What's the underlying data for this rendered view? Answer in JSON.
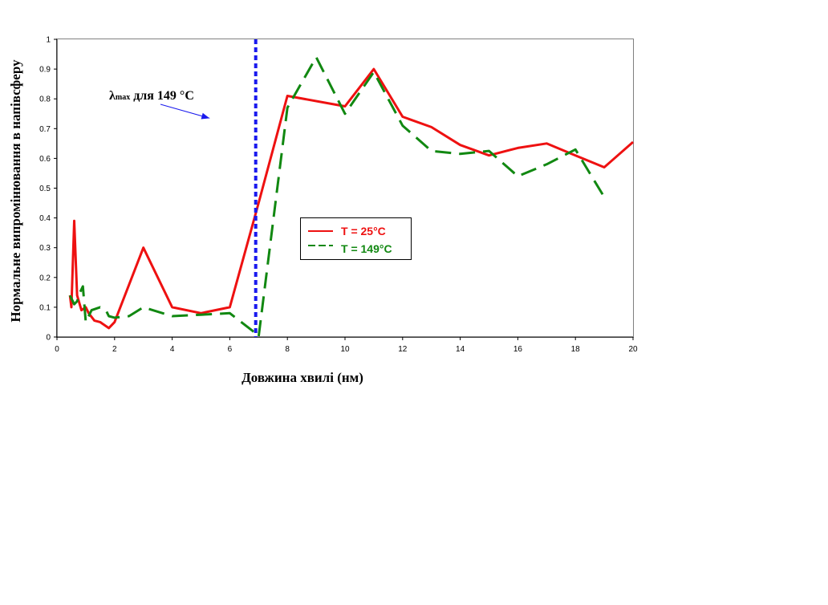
{
  "chart_data": {
    "type": "line",
    "xlabel": "Довжина хвилі (нм)",
    "ylabel": "Нормальне випромінювання в напівсферу",
    "xlim": [
      0,
      20
    ],
    "ylim": [
      0,
      1
    ],
    "x_ticks": [
      0,
      2,
      4,
      6,
      8,
      10,
      12,
      14,
      16,
      18,
      20
    ],
    "y_ticks": [
      0,
      0.1,
      0.2,
      0.3,
      0.4,
      0.5,
      0.6,
      0.7,
      0.8,
      0.9,
      1
    ],
    "grid": false,
    "legend_position": "center-right",
    "series": [
      {
        "name": "T = 25°C",
        "color": "#ee1111",
        "style": "solid",
        "points": [
          [
            0.45,
            0.14
          ],
          [
            0.5,
            0.1
          ],
          [
            0.6,
            0.39
          ],
          [
            0.7,
            0.14
          ],
          [
            0.85,
            0.09
          ],
          [
            1.0,
            0.1
          ],
          [
            1.1,
            0.08
          ],
          [
            1.3,
            0.055
          ],
          [
            1.5,
            0.05
          ],
          [
            1.8,
            0.03
          ],
          [
            2.0,
            0.05
          ],
          [
            3.0,
            0.3
          ],
          [
            4.0,
            0.1
          ],
          [
            5.0,
            0.08
          ],
          [
            6.0,
            0.1
          ],
          [
            7.0,
            0.45
          ],
          [
            8.0,
            0.81
          ],
          [
            10.0,
            0.775
          ],
          [
            11.0,
            0.9
          ],
          [
            12.0,
            0.74
          ],
          [
            13.0,
            0.705
          ],
          [
            14.0,
            0.645
          ],
          [
            15.0,
            0.61
          ],
          [
            16.0,
            0.635
          ],
          [
            17.0,
            0.65
          ],
          [
            18.0,
            0.61
          ],
          [
            19.0,
            0.57
          ],
          [
            20.0,
            0.655
          ]
        ]
      },
      {
        "name": "T = 149°C",
        "color": "#118811",
        "style": "dashed",
        "points": [
          [
            0.45,
            0.14
          ],
          [
            0.6,
            0.11
          ],
          [
            0.7,
            0.12
          ],
          [
            0.8,
            0.15
          ],
          [
            0.9,
            0.17
          ],
          [
            1.0,
            0.05
          ],
          [
            1.2,
            0.09
          ],
          [
            1.5,
            0.1
          ],
          [
            1.7,
            0.09
          ],
          [
            1.8,
            0.07
          ],
          [
            2.0,
            0.065
          ],
          [
            2.5,
            0.07
          ],
          [
            3.0,
            0.1
          ],
          [
            4.0,
            0.07
          ],
          [
            5.0,
            0.075
          ],
          [
            6.0,
            0.08
          ],
          [
            6.8,
            0.02
          ],
          [
            7.0,
            0.0
          ],
          [
            8.0,
            0.77
          ],
          [
            9.0,
            0.94
          ],
          [
            10.0,
            0.75
          ],
          [
            11.0,
            0.89
          ],
          [
            12.0,
            0.71
          ],
          [
            13.0,
            0.625
          ],
          [
            14.0,
            0.615
          ],
          [
            15.0,
            0.625
          ],
          [
            16.0,
            0.54
          ],
          [
            17.0,
            0.58
          ],
          [
            18.0,
            0.63
          ],
          [
            19.0,
            0.47
          ]
        ]
      }
    ],
    "vertical_line": {
      "x": 6.9,
      "color": "#1a1aee",
      "style": "dotted"
    },
    "annotation": {
      "lambda": "λ",
      "sub": "max",
      "rest": " для 149 °C",
      "arrow_to": [
        5.3,
        0.735
      ]
    }
  }
}
